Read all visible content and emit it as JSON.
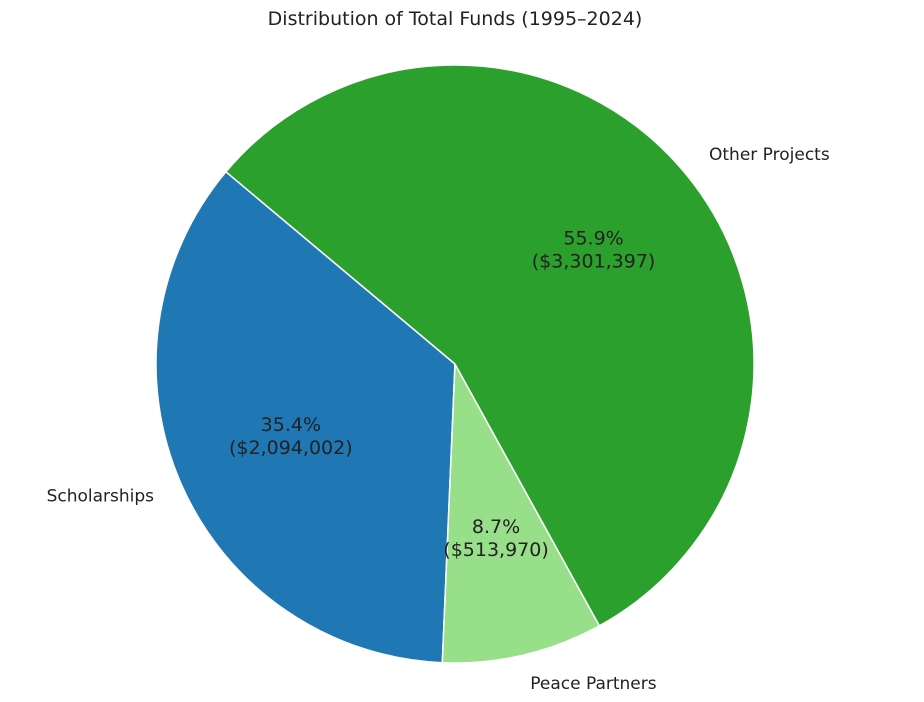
{
  "chart_data": {
    "type": "pie",
    "title": "Distribution of Total Funds (1995–2024)",
    "slices": [
      {
        "label": "Scholarships",
        "value": 2094002,
        "percent_text": "35.4%",
        "value_text": "($2,094,002)",
        "color": "#1f77b4"
      },
      {
        "label": "Peace Partners",
        "value": 513970,
        "percent_text": "8.7%",
        "value_text": "($513,970)",
        "color": "#98df8a"
      },
      {
        "label": "Other Projects",
        "value": 3301397,
        "percent_text": "55.9%",
        "value_text": "($3,301,397)",
        "color": "#2ca02c"
      }
    ],
    "start_angle_deg": 140,
    "direction": "counterclockwise"
  }
}
